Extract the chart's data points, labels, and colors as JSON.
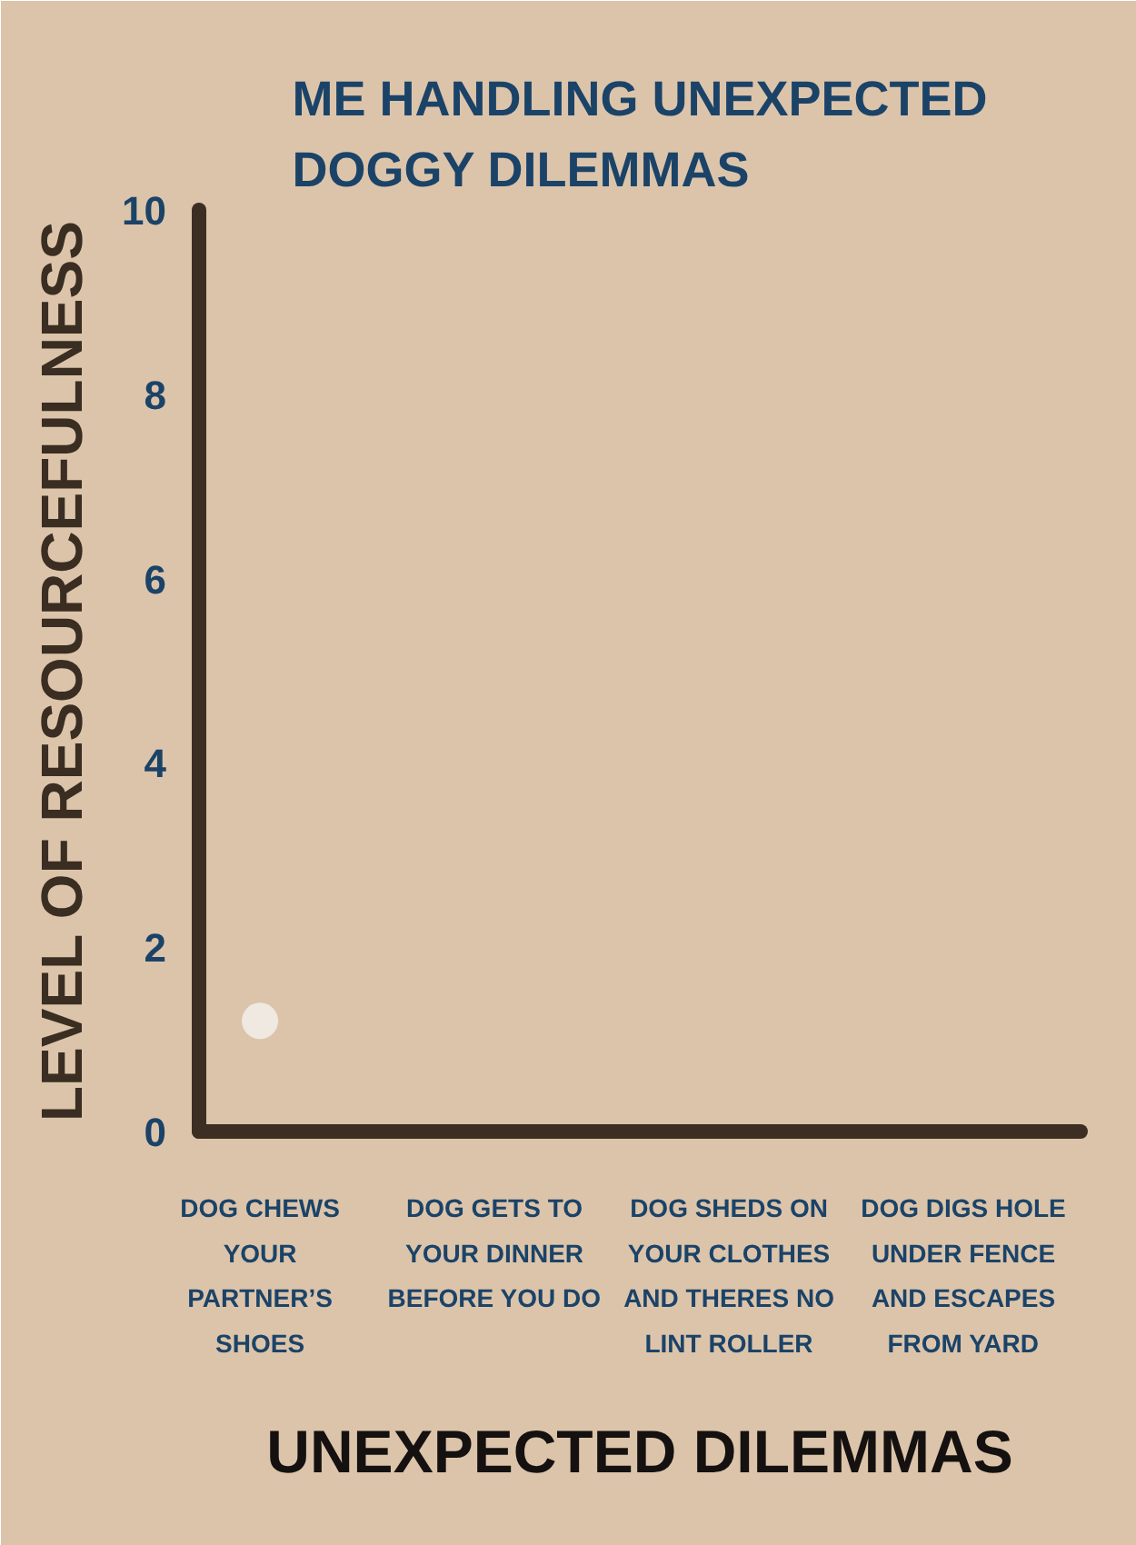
{
  "chart_data": {
    "type": "scatter",
    "title": "ME HANDLING UNEXPECTED DOGGY DILEMMAS",
    "xlabel": "UNEXPECTED DILEMMAS",
    "ylabel": "LEVEL OF RESOURCEFULNESS",
    "categories": [
      "DOG CHEWS YOUR PARTNER’S SHOES",
      "DOG GETS TO YOUR DINNER BEFORE YOU DO",
      "DOG SHEDS ON YOUR CLOTHES AND THERES NO LINT ROLLER",
      "DOG DIGS HOLE UNDER FENCE AND ESCAPES FROM YARD"
    ],
    "series": [
      {
        "color": "#efe9e2",
        "values": [
          1.2,
          null,
          null,
          null
        ]
      }
    ],
    "marker": "circle",
    "ylim": [
      0,
      10
    ],
    "yticks": [
      0,
      2,
      4,
      6,
      8,
      10
    ],
    "grid": false
  }
}
